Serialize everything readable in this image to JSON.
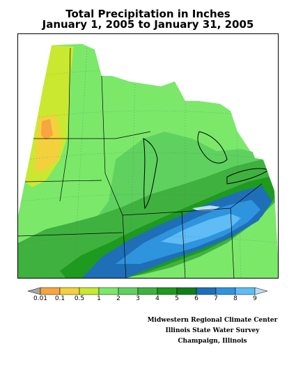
{
  "title": {
    "line1": "Total Precipitation in Inches",
    "line2": "January 1, 2005 to January 31, 2005"
  },
  "legend": {
    "labels": [
      "0.01",
      "0.1",
      "0.5",
      "1",
      "2",
      "3",
      "4",
      "5",
      "6",
      "7",
      "8",
      "9"
    ],
    "colors": [
      "#a6a6a6",
      "#f6a540",
      "#f3d13c",
      "#cbe830",
      "#7be86a",
      "#5fd15f",
      "#3fb13f",
      "#1e9a1e",
      "#0f7f1a",
      "#1e6fb8",
      "#2f94de",
      "#5fbcf5",
      "#b7def8"
    ]
  },
  "credits": {
    "line1": "Midwestern Regional Climate Center",
    "line2": "Illinois State Water Survey",
    "line3": "Champaign, Illinois"
  }
}
